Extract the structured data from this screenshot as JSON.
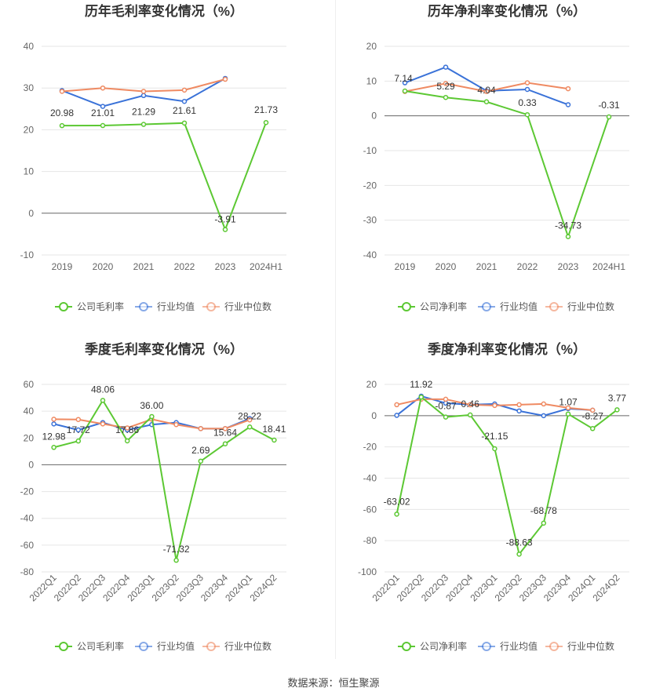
{
  "colors": {
    "company": "#5cc833",
    "avg": "#3a72d8",
    "median": "#ef8a62",
    "axis": "#666666",
    "grid": "#e6e6e6",
    "label": "#333333"
  },
  "chart_data": [
    {
      "id": "annual-gross",
      "type": "line",
      "title": "历年毛利率变化情况（%）",
      "categories": [
        "2019",
        "2020",
        "2021",
        "2022",
        "2023",
        "2024H1"
      ],
      "ylim": [
        -10,
        40
      ],
      "yticks": [
        -10,
        0,
        10,
        20,
        30,
        40
      ],
      "series": [
        {
          "name": "公司毛利率",
          "role": "company",
          "values": [
            20.98,
            21.01,
            21.29,
            21.61,
            -3.91,
            21.73
          ],
          "labels": [
            "20.98",
            "21.01",
            "21.29",
            "21.61",
            "-3.91",
            "21.73"
          ]
        },
        {
          "name": "行业均值",
          "role": "avg",
          "values": [
            29.4,
            25.6,
            28.2,
            26.8,
            32.3,
            null
          ]
        },
        {
          "name": "行业中位数",
          "role": "median",
          "values": [
            29.2,
            30.0,
            29.2,
            29.5,
            32.1,
            null
          ]
        }
      ],
      "legend": [
        "公司毛利率",
        "行业均值",
        "行业中位数"
      ]
    },
    {
      "id": "annual-net",
      "type": "line",
      "title": "历年净利率变化情况（%）",
      "categories": [
        "2019",
        "2020",
        "2021",
        "2022",
        "2023",
        "2024H1"
      ],
      "ylim": [
        -40,
        20
      ],
      "yticks": [
        -40,
        -30,
        -20,
        -10,
        0,
        10,
        20
      ],
      "series": [
        {
          "name": "公司净利率",
          "role": "company",
          "values": [
            7.14,
            5.29,
            4.04,
            0.33,
            -34.73,
            -0.31
          ],
          "labels": [
            "7.14",
            "5.29",
            "4.04",
            "0.33",
            "-34.73",
            "-0.31"
          ]
        },
        {
          "name": "行业均值",
          "role": "avg",
          "values": [
            9.5,
            14.0,
            7.2,
            7.6,
            3.2,
            null
          ]
        },
        {
          "name": "行业中位数",
          "role": "median",
          "values": [
            7.0,
            9.3,
            7.0,
            9.5,
            7.8,
            null
          ]
        }
      ],
      "legend": [
        "公司净利率",
        "行业均值",
        "行业中位数"
      ]
    },
    {
      "id": "quarterly-gross",
      "type": "line",
      "title": "季度毛利率变化情况（%）",
      "categories": [
        "2022Q1",
        "2022Q2",
        "2022Q3",
        "2022Q4",
        "2023Q1",
        "2023Q2",
        "2023Q3",
        "2023Q4",
        "2024Q1",
        "2024Q2"
      ],
      "ylim": [
        -80,
        60
      ],
      "yticks": [
        -80,
        -60,
        -40,
        -20,
        0,
        20,
        40,
        60
      ],
      "series": [
        {
          "name": "公司毛利率",
          "role": "company",
          "values": [
            12.98,
            17.72,
            48.06,
            17.86,
            36.0,
            -71.32,
            2.69,
            15.64,
            28.22,
            18.41
          ],
          "labels": [
            "12.98",
            "17.72",
            "48.06",
            "17.86",
            "36.00",
            "-71.32",
            "2.69",
            "15.64",
            "28.22",
            "18.41"
          ]
        },
        {
          "name": "行业均值",
          "role": "avg",
          "values": [
            30.5,
            26.0,
            31.5,
            26.0,
            30.0,
            31.5,
            27.0,
            27.0,
            34.5,
            null
          ]
        },
        {
          "name": "行业中位数",
          "role": "median",
          "values": [
            34.0,
            33.8,
            30.5,
            27.5,
            34.0,
            30.0,
            27.0,
            27.0,
            33.5,
            null
          ]
        }
      ],
      "legend": [
        "公司毛利率",
        "行业均值",
        "行业中位数"
      ]
    },
    {
      "id": "quarterly-net",
      "type": "line",
      "title": "季度净利率变化情况（%）",
      "categories": [
        "2022Q1",
        "2022Q2",
        "2022Q3",
        "2022Q4",
        "2023Q1",
        "2023Q2",
        "2023Q3",
        "2023Q4",
        "2024Q1",
        "2024Q2"
      ],
      "ylim": [
        -100,
        20
      ],
      "yticks": [
        -100,
        -80,
        -60,
        -40,
        -20,
        0,
        20
      ],
      "series": [
        {
          "name": "公司净利率",
          "role": "company",
          "values": [
            -63.02,
            11.92,
            -0.87,
            0.46,
            -21.15,
            -88.63,
            -68.78,
            1.07,
            -8.27,
            3.77
          ],
          "labels": [
            "-63.02",
            "11.92",
            "-0.87",
            "0.46",
            "-21.15",
            "-88.63",
            "-68.78",
            "1.07",
            "-8.27",
            "3.77"
          ]
        },
        {
          "name": "行业均值",
          "role": "avg",
          "values": [
            0.2,
            12.5,
            8.0,
            7.0,
            7.5,
            3.0,
            0.0,
            4.5,
            3.5,
            null
          ]
        },
        {
          "name": "行业中位数",
          "role": "median",
          "values": [
            7.0,
            10.5,
            10.5,
            7.0,
            6.5,
            7.0,
            7.5,
            5.0,
            3.5,
            null
          ]
        }
      ],
      "legend": [
        "公司净利率",
        "行业均值",
        "行业中位数"
      ]
    }
  ],
  "footer": {
    "source": "数据来源：恒生聚源"
  }
}
